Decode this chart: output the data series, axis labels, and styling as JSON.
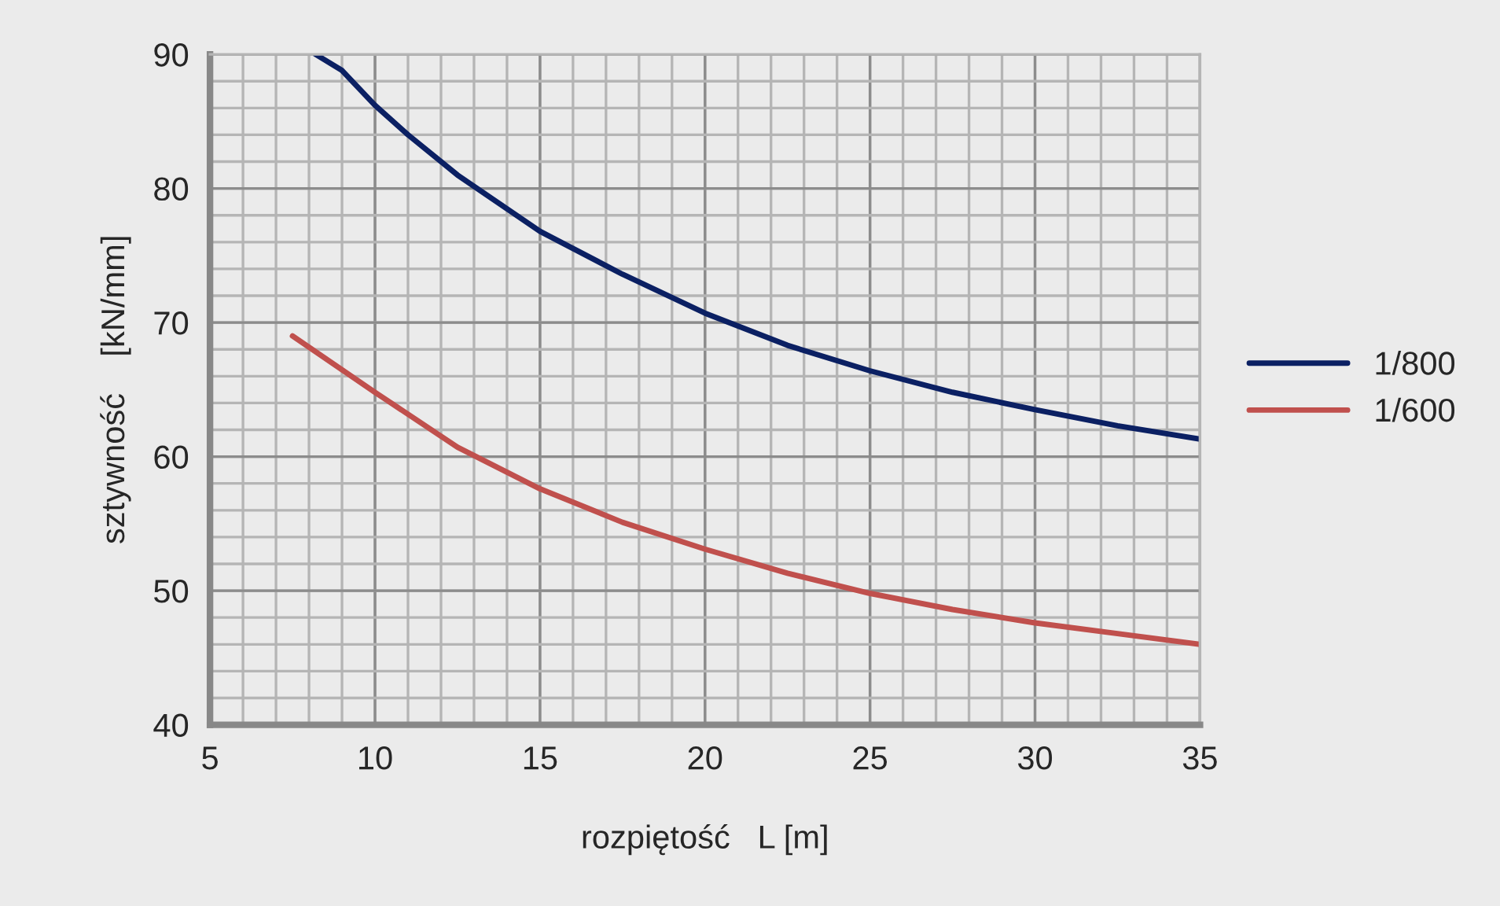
{
  "chart_data": {
    "type": "line",
    "xlabel": "rozpiętość   L [m]",
    "ylabel": "sztywność    [kN/mm]",
    "series": [
      {
        "name": "1/800",
        "color": "#0b2063",
        "x": [
          8.2,
          9,
          10,
          11,
          12.5,
          15,
          17.5,
          20,
          22.5,
          25,
          27.5,
          30,
          32.5,
          35
        ],
        "values": [
          90,
          88.8,
          86.2,
          84.0,
          81.0,
          76.8,
          73.6,
          70.7,
          68.3,
          66.4,
          64.8,
          63.5,
          62.3,
          61.3
        ]
      },
      {
        "name": "1/600",
        "color": "#c0504d",
        "x": [
          7.5,
          10,
          12.5,
          15,
          17.5,
          20,
          22.5,
          25,
          27.5,
          30,
          32.5,
          35
        ],
        "values": [
          69.0,
          64.8,
          60.7,
          57.6,
          55.1,
          53.1,
          51.3,
          49.8,
          48.6,
          47.6,
          46.8,
          46.0
        ]
      }
    ],
    "xlim": [
      5,
      35
    ],
    "xticks": [
      5,
      10,
      15,
      20,
      25,
      30,
      35
    ],
    "ylim": [
      40,
      90
    ],
    "yticks": [
      40,
      50,
      60,
      70,
      80,
      90
    ],
    "grid": true,
    "legend": "right",
    "marker": "none",
    "line_style": "solid"
  }
}
